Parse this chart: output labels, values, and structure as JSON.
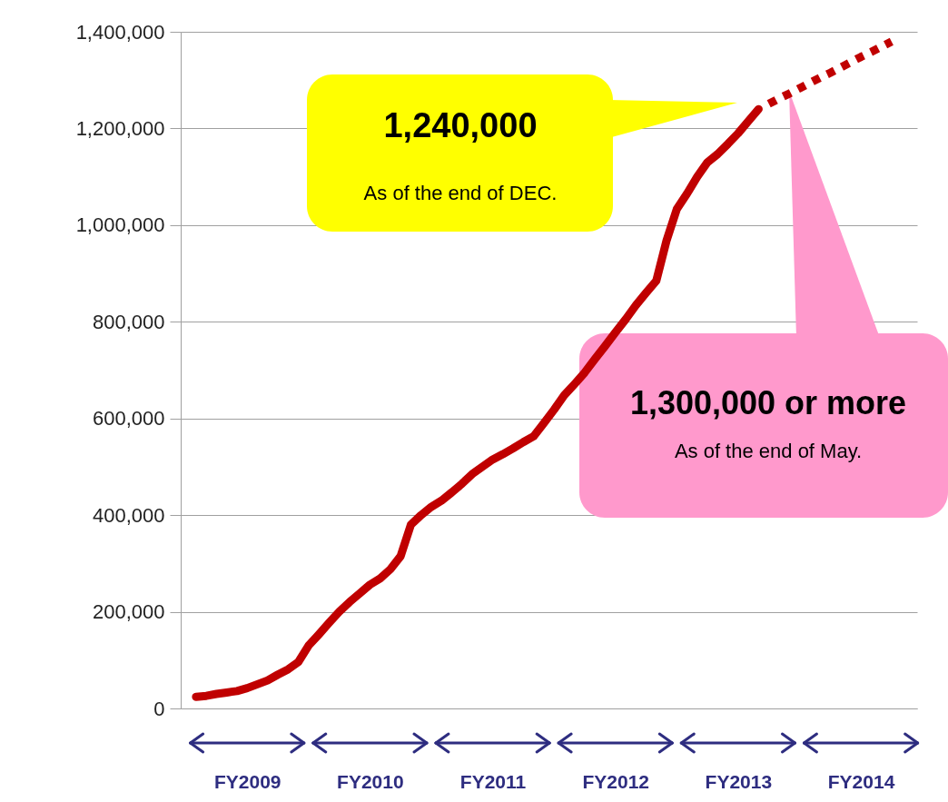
{
  "chart_data": {
    "type": "line",
    "categories": [
      null,
      null,
      null,
      null,
      null,
      null,
      "FY2009",
      null,
      null,
      null,
      null,
      null,
      null,
      null,
      null,
      null,
      null,
      null,
      "FY2010",
      null,
      null,
      null,
      null,
      null,
      null,
      null,
      null,
      null,
      null,
      null,
      "FY2011",
      null,
      null,
      null,
      null,
      null,
      null,
      null,
      null,
      null,
      null,
      null,
      "FY2012",
      null,
      null,
      null,
      null,
      null,
      null,
      null,
      null,
      null,
      null,
      null,
      "FY2013",
      null,
      null,
      null,
      null,
      null,
      null,
      null,
      null,
      null,
      null,
      null,
      "FY2014",
      null,
      null,
      null,
      null,
      null
    ],
    "ylim": [
      0,
      1400000
    ],
    "yticks": [
      {
        "value": 0,
        "label": "0"
      },
      {
        "value": 200000,
        "label": "200,000"
      },
      {
        "value": 400000,
        "label": "400,000"
      },
      {
        "value": 600000,
        "label": "600,000"
      },
      {
        "value": 800000,
        "label": "800,000"
      },
      {
        "value": 1000000,
        "label": "1,000,000"
      },
      {
        "value": 1200000,
        "label": "1,200,000"
      },
      {
        "value": 1400000,
        "label": "1,400,000"
      }
    ],
    "grid": "y",
    "legend": false,
    "marker": "none",
    "series": [
      {
        "color": "#c00000",
        "line_style": "solid",
        "values": [
          null,
          24000,
          26000,
          30000,
          33000,
          36000,
          42000,
          50000,
          58000,
          70000,
          81000,
          96000,
          130000,
          153000,
          177000,
          200000,
          220000,
          238000,
          256000,
          269000,
          288000,
          315000,
          380000,
          400000,
          417000,
          430000,
          447000,
          465000,
          485000,
          500000,
          515000,
          526000,
          538000,
          551000,
          563000,
          590000,
          618000,
          648000,
          671000,
          695000,
          723000,
          750000,
          778000,
          805000,
          834000,
          860000,
          885000,
          968000,
          1033000,
          1065000,
          1100000,
          1130000,
          1147000,
          1168000,
          1190000,
          1215000,
          1240000,
          null,
          null,
          null,
          null,
          null,
          null,
          null,
          null,
          null,
          null,
          null,
          null,
          null,
          null,
          null
        ]
      },
      {
        "color": "#c00000",
        "line_style": "dashed",
        "values": [
          null,
          null,
          null,
          null,
          null,
          null,
          null,
          null,
          null,
          null,
          null,
          null,
          null,
          null,
          null,
          null,
          null,
          null,
          null,
          null,
          null,
          null,
          null,
          null,
          null,
          null,
          null,
          null,
          null,
          null,
          null,
          null,
          null,
          null,
          null,
          null,
          null,
          null,
          null,
          null,
          null,
          null,
          null,
          null,
          null,
          null,
          null,
          null,
          null,
          null,
          null,
          null,
          null,
          null,
          null,
          null,
          null,
          1251000,
          1262000,
          1272000,
          1283000,
          1294000,
          1305000,
          1315000,
          1326000,
          1337000,
          1348000,
          1358000,
          1369000,
          1380000,
          null,
          null
        ]
      }
    ],
    "annotations": [
      "1,240,000\nAs of the end of DEC.",
      "1,300,000 or more\nAs of the end of May."
    ]
  }
}
